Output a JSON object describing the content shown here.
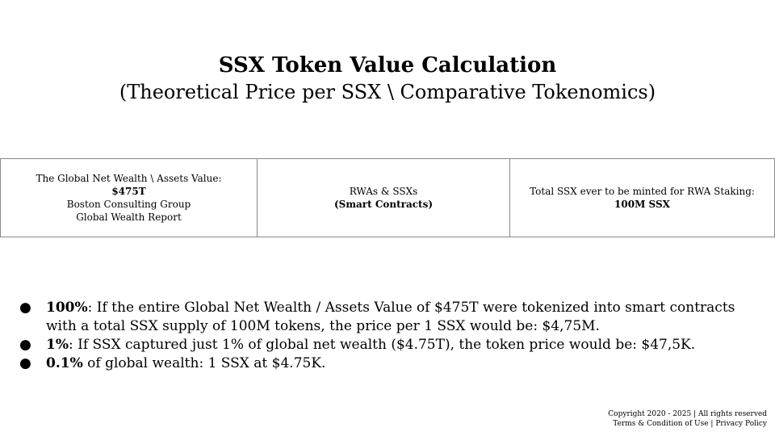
{
  "header": {
    "title": "SSX Token Value Calculation",
    "subtitle": "(Theoretical Price per SSX \\ Comparative Tokenomics)"
  },
  "table": {
    "cell1": {
      "line1": "The Global Net Wealth \\ Assets Value:",
      "value": "$475T",
      "line3": "Boston Consulting Group",
      "line4": "Global Wealth Report"
    },
    "cell2": {
      "line1": "RWAs & SSXs",
      "line2": "(Smart Contracts)"
    },
    "cell3": {
      "line1": "Total SSX ever to be minted for RWA Staking:",
      "line2": "100M SSX"
    }
  },
  "bullets": [
    {
      "marker": "●",
      "lead": "100%",
      "text": ": If the entire Global Net Wealth / Assets Value of $475T were tokenized into smart contracts with a total SSX supply of 100M tokens, the price per 1 SSX would be: $4,75M."
    },
    {
      "marker": "●",
      "lead": "1%",
      "text": ": If SSX captured just 1% of global net wealth ($4.75T), the token price would be: $47,5K."
    },
    {
      "marker": "●",
      "lead": "0.1%",
      "text": " of global wealth: 1 SSX at $4.75K."
    }
  ],
  "footer": {
    "copyright": "Copyright 2020 - 2025 | All rights reserved",
    "terms_label": "Terms & Condition of Use",
    "separator": " | ",
    "privacy_label": "Privacy Policy"
  }
}
